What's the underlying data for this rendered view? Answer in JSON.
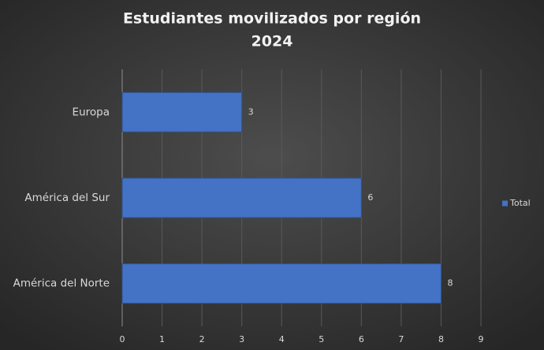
{
  "chart_data": {
    "type": "bar",
    "orientation": "horizontal",
    "title": [
      "Estudiantes movilizados por región",
      "2024"
    ],
    "categories": [
      "Europa",
      "América del Sur",
      "América del Norte"
    ],
    "series": [
      {
        "name": "Total",
        "color": "#4472c4",
        "values": [
          3,
          6,
          8
        ]
      }
    ],
    "xlim": [
      0,
      9
    ],
    "xticks": [
      0,
      1,
      2,
      3,
      4,
      5,
      6,
      7,
      8,
      9
    ],
    "grid": true,
    "legend": "right"
  }
}
